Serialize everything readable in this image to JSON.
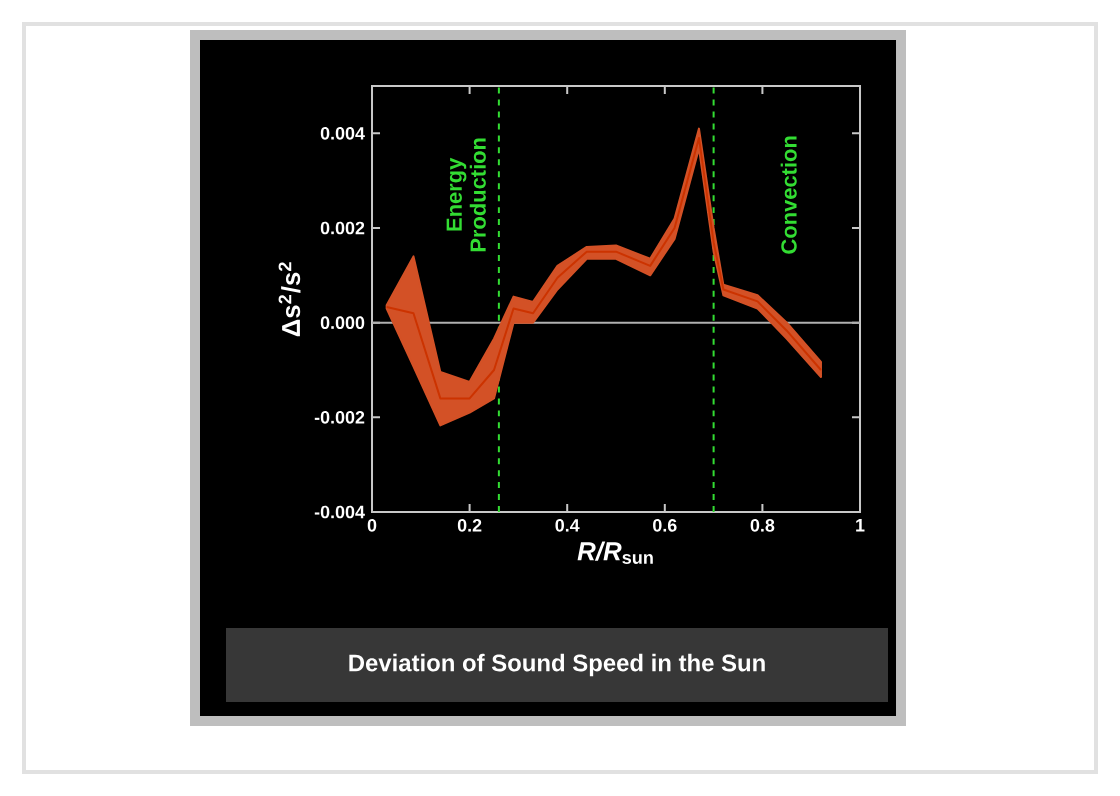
{
  "chart_data": {
    "type": "line",
    "title": "Deviation of Sound Speed in the Sun",
    "xlabel": "*R/R*$_{sun}$",
    "ylabel": "Δs$^{2}$/s$^{2}$",
    "xlim": [
      0,
      1
    ],
    "ylim": [
      -0.004,
      0.005
    ],
    "xticks": [
      0,
      0.2,
      0.4,
      0.6,
      0.8,
      1
    ],
    "yticks": [
      -0.004,
      -0.002,
      {
        "value": 0,
        "label": "0.000"
      },
      0.002,
      0.004
    ],
    "series": [
      {
        "color": "#cc3300",
        "x": [
          0.03,
          0.085,
          0.14,
          0.2,
          0.25,
          0.29,
          0.33,
          0.38,
          0.44,
          0.5,
          0.57,
          0.62,
          0.67,
          0.7,
          0.72,
          0.79,
          0.85,
          0.92
        ],
        "values": [
          0.00033,
          0.0002,
          -0.0016,
          -0.0016,
          -0.001,
          0.0003,
          0.0002,
          0.00095,
          0.0015,
          0.0015,
          0.0012,
          0.002,
          0.0039,
          0.0017,
          0.0007,
          0.00045,
          -0.00017,
          -0.001
        ],
        "lower": [
          0.0003,
          -0.00093,
          -0.00217,
          -0.0019,
          -0.0016,
          0.0,
          0.0,
          0.0007,
          0.00135,
          0.00135,
          0.001,
          0.00177,
          0.00368,
          0.0015,
          0.00058,
          0.0003,
          -0.00034,
          -0.00115
        ],
        "upper": [
          0.00037,
          0.0014,
          -0.00104,
          -0.00125,
          -0.00034,
          0.00055,
          0.00044,
          0.0012,
          0.0016,
          0.00163,
          0.00135,
          0.0022,
          0.0041,
          0.002,
          0.0008,
          0.00058,
          0.0,
          -0.00083
        ]
      }
    ],
    "ref_lines": [
      {
        "axis": "y",
        "value": 0,
        "color": "#b0b0b0",
        "line_style": "solid"
      },
      {
        "axis": "x",
        "value": 0.26,
        "label": "Energy Production",
        "color": "#33dd33",
        "line_style": "dashed"
      },
      {
        "axis": "x",
        "value": 0.7,
        "label": "Convection",
        "color": "#33dd33",
        "line_style": "dashed"
      }
    ],
    "grid": false,
    "marker": "none",
    "line_style": "solid"
  }
}
